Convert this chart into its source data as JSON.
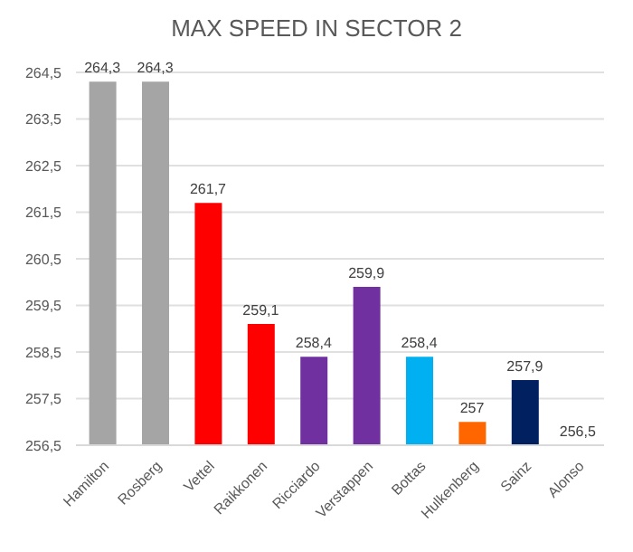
{
  "chart_data": {
    "type": "bar",
    "title": "MAX SPEED IN SECTOR 2",
    "categories": [
      "Hamilton",
      "Rosberg",
      "Vettel",
      "Raikkonen",
      "Ricciardo",
      "Verstappen",
      "Bottas",
      "Hulkenberg",
      "Sainz",
      "Alonso"
    ],
    "values": [
      264.3,
      264.3,
      261.7,
      259.1,
      258.4,
      259.9,
      258.4,
      257,
      257.9,
      256.5
    ],
    "colors": [
      "#a5a5a5",
      "#a5a5a5",
      "#ff0000",
      "#ff0000",
      "#7030a0",
      "#7030a0",
      "#00b0f0",
      "#ff6600",
      "#002060",
      "#a5a5a5"
    ],
    "value_labels": [
      "264,3",
      "264,3",
      "261,7",
      "259,1",
      "258,4",
      "259,9",
      "258,4",
      "257",
      "257,9",
      "256,5"
    ],
    "ylim": [
      256.5,
      264.5
    ],
    "yticks": [
      {
        "value": 256.5,
        "label": "256,5"
      },
      {
        "value": 257.5,
        "label": "257,5"
      },
      {
        "value": 258.5,
        "label": "258,5"
      },
      {
        "value": 259.5,
        "label": "259,5"
      },
      {
        "value": 260.5,
        "label": "260,5"
      },
      {
        "value": 261.5,
        "label": "261,5"
      },
      {
        "value": 262.5,
        "label": "262,5"
      },
      {
        "value": 263.5,
        "label": "263,5"
      },
      {
        "value": 264.5,
        "label": "264,5"
      }
    ],
    "grid": "y"
  }
}
